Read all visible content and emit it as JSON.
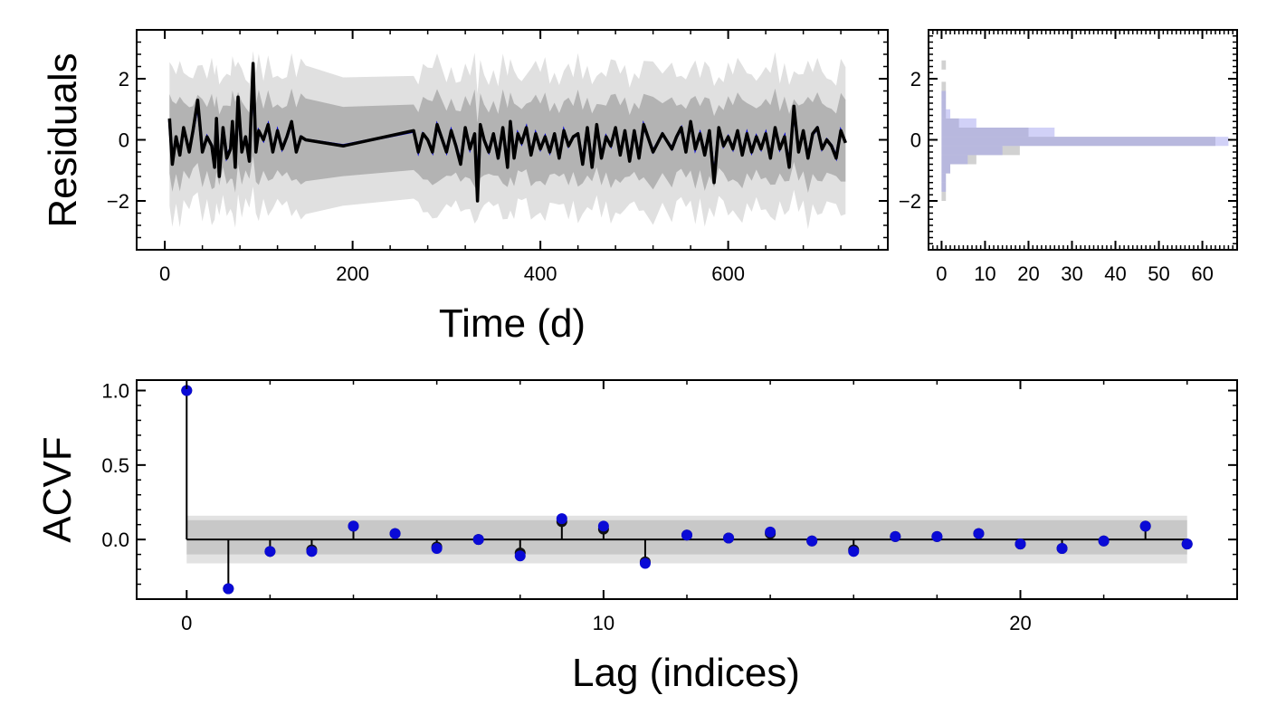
{
  "chart_data": [
    {
      "type": "line",
      "xlabel": "Time (d)",
      "ylabel": "Residuals",
      "xlim": [
        -30,
        770
      ],
      "ylim": [
        -3.6,
        3.6
      ],
      "xticks": [
        0,
        200,
        400,
        600
      ],
      "yticks": [
        -2,
        0,
        2
      ],
      "xtick_labels": [
        "0",
        "200",
        "400",
        "600"
      ],
      "ytick_labels": [
        "−2",
        "0",
        "2"
      ],
      "colors": {
        "residual_line": "#000000",
        "model_line": "#0000dd",
        "band_inner": "#b3b3b3",
        "band_outer": "#e0e0e0"
      },
      "grid": false,
      "x": [
        5,
        8,
        12,
        16,
        20,
        26,
        30,
        35,
        40,
        45,
        50,
        53,
        55,
        58,
        62,
        66,
        70,
        72,
        75,
        78,
        82,
        86,
        90,
        94,
        97,
        100,
        105,
        110,
        115,
        120,
        125,
        130,
        135,
        140,
        145,
        150,
        190,
        265,
        270,
        275,
        280,
        285,
        290,
        300,
        305,
        310,
        315,
        320,
        325,
        330,
        333,
        336,
        340,
        345,
        350,
        355,
        360,
        365,
        368,
        372,
        376,
        380,
        385,
        390,
        395,
        400,
        405,
        410,
        415,
        420,
        425,
        430,
        435,
        440,
        445,
        450,
        455,
        460,
        465,
        470,
        475,
        480,
        485,
        490,
        495,
        500,
        505,
        510,
        520,
        530,
        540,
        545,
        550,
        555,
        560,
        565,
        570,
        575,
        580,
        585,
        590,
        595,
        600,
        605,
        610,
        615,
        620,
        625,
        630,
        635,
        640,
        645,
        650,
        655,
        660,
        665,
        670,
        675,
        680,
        685,
        690,
        695,
        700,
        705,
        710,
        715,
        720,
        725
      ],
      "y": [
        0.7,
        -0.8,
        0.1,
        -0.5,
        0.4,
        -0.4,
        0.3,
        1.3,
        -0.4,
        0.1,
        -0.2,
        -0.9,
        0.7,
        -1.2,
        0.4,
        -0.6,
        -0.3,
        0.6,
        -0.9,
        1.4,
        -0.4,
        0.1,
        -0.7,
        2.5,
        -0.4,
        0.3,
        0.0,
        0.5,
        -0.4,
        0.3,
        -0.3,
        0.1,
        0.6,
        -0.4,
        0.1,
        0.0,
        -0.2,
        0.3,
        -0.4,
        0.2,
        0.0,
        -0.4,
        0.5,
        -0.4,
        0.3,
        -0.2,
        -0.8,
        0.4,
        -0.3,
        0.2,
        -2.0,
        0.5,
        0.0,
        -0.4,
        0.2,
        -0.6,
        0.4,
        -0.9,
        0.6,
        -0.6,
        0.2,
        -0.1,
        0.4,
        -0.5,
        0.2,
        -0.3,
        0.1,
        -0.4,
        0.2,
        -0.6,
        0.3,
        -0.2,
        0.1,
        0.2,
        -0.8,
        0.4,
        -0.9,
        0.5,
        -0.6,
        0.1,
        -0.2,
        0.4,
        -0.5,
        0.3,
        -0.7,
        0.3,
        -0.6,
        0.5,
        -0.4,
        0.2,
        -0.3,
        0.1,
        0.4,
        -0.4,
        0.6,
        -0.3,
        0.2,
        -0.5,
        0.3,
        -1.4,
        0.4,
        -0.2,
        0.1,
        -0.3,
        0.3,
        -0.5,
        0.2,
        -0.4,
        0.1,
        -0.3,
        0.2,
        -0.6,
        0.4,
        -0.3,
        0.1,
        -0.9,
        1.1,
        -0.4,
        0.3,
        -0.6,
        0.2,
        0.4,
        -0.3,
        0.0,
        -0.2,
        -0.6,
        0.3,
        -0.1
      ]
    },
    {
      "type": "bar",
      "orientation": "horizontal",
      "xlim": [
        -3,
        68
      ],
      "ylim": [
        -3.6,
        3.6
      ],
      "xticks": [
        0,
        10,
        20,
        30,
        40,
        50,
        60
      ],
      "yticks": [
        -2,
        0,
        2
      ],
      "xtick_labels": [
        "0",
        "10",
        "20",
        "30",
        "40",
        "50",
        "60"
      ],
      "ytick_labels": [
        "−2",
        "0",
        "2"
      ],
      "colors": {
        "residuals_hist": "#999999",
        "model_hist": "#9999ee"
      },
      "bin_centers": [
        -1.85,
        -1.55,
        -1.25,
        -0.95,
        -0.65,
        -0.35,
        -0.05,
        0.25,
        0.55,
        0.85,
        1.15,
        1.45,
        1.75,
        2.05,
        2.45
      ],
      "series": [
        {
          "values": [
            1,
            1,
            1,
            2,
            8,
            18,
            63,
            20,
            4,
            1,
            1,
            1,
            1,
            0,
            1
          ]
        },
        {
          "values": [
            0,
            1,
            1,
            2,
            6,
            14,
            66,
            26,
            8,
            2,
            1,
            1,
            0,
            0,
            0
          ]
        }
      ]
    },
    {
      "type": "stem",
      "xlabel": "Lag (indices)",
      "ylabel": "ACVF",
      "xlim": [
        -1.2,
        25.2
      ],
      "ylim": [
        -0.4,
        1.07
      ],
      "xticks": [
        0,
        10,
        20
      ],
      "yticks": [
        0.0,
        0.5,
        1.0
      ],
      "xtick_labels": [
        "0",
        "10",
        "20"
      ],
      "ytick_labels": [
        "0.0",
        "0.5",
        "1.0"
      ],
      "colors": {
        "stem": "#000000",
        "marker_residuals": "#111111",
        "marker_model": "#0a0ad6",
        "band_inner": "#c8c8c8",
        "band_outer": "#e2e2e2"
      },
      "band_inner": [
        -0.1,
        0.13
      ],
      "band_outer": [
        -0.16,
        0.16
      ],
      "lags": [
        0,
        1,
        2,
        3,
        4,
        5,
        6,
        7,
        8,
        9,
        10,
        11,
        12,
        13,
        14,
        15,
        16,
        17,
        18,
        19,
        20,
        21,
        22,
        23,
        24
      ],
      "series": [
        {
          "values": [
            1.0,
            -0.33,
            -0.08,
            -0.07,
            0.09,
            0.04,
            -0.05,
            0.0,
            -0.09,
            0.12,
            0.07,
            -0.15,
            0.03,
            0.01,
            0.04,
            -0.01,
            -0.07,
            0.02,
            0.02,
            0.04,
            -0.03,
            -0.06,
            -0.01,
            0.09,
            -0.03
          ]
        },
        {
          "values": [
            1.0,
            -0.33,
            -0.08,
            -0.08,
            0.09,
            0.04,
            -0.06,
            0.0,
            -0.11,
            0.14,
            0.09,
            -0.16,
            0.03,
            0.01,
            0.05,
            -0.01,
            -0.08,
            0.02,
            0.02,
            0.04,
            -0.03,
            -0.06,
            -0.01,
            0.09,
            -0.03
          ]
        }
      ]
    }
  ]
}
